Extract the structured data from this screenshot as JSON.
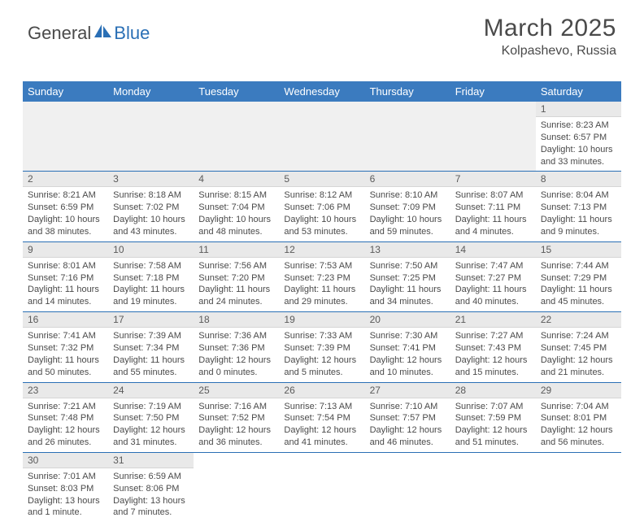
{
  "logo": {
    "part1": "General",
    "part2": "Blue"
  },
  "title": "March 2025",
  "location": "Kolpashevo, Russia",
  "colors": {
    "header_bg": "#3b7bbf",
    "header_text": "#ffffff",
    "accent_border": "#2a6fb5",
    "daynum_bg": "#e9e9e9",
    "empty_bg": "#f0f0f0",
    "text": "#4a4a4a"
  },
  "weekdays": [
    "Sunday",
    "Monday",
    "Tuesday",
    "Wednesday",
    "Thursday",
    "Friday",
    "Saturday"
  ],
  "first_weekday_index": 6,
  "days": [
    {
      "n": 1,
      "sunrise": "8:23 AM",
      "sunset": "6:57 PM",
      "daylight": "10 hours and 33 minutes."
    },
    {
      "n": 2,
      "sunrise": "8:21 AM",
      "sunset": "6:59 PM",
      "daylight": "10 hours and 38 minutes."
    },
    {
      "n": 3,
      "sunrise": "8:18 AM",
      "sunset": "7:02 PM",
      "daylight": "10 hours and 43 minutes."
    },
    {
      "n": 4,
      "sunrise": "8:15 AM",
      "sunset": "7:04 PM",
      "daylight": "10 hours and 48 minutes."
    },
    {
      "n": 5,
      "sunrise": "8:12 AM",
      "sunset": "7:06 PM",
      "daylight": "10 hours and 53 minutes."
    },
    {
      "n": 6,
      "sunrise": "8:10 AM",
      "sunset": "7:09 PM",
      "daylight": "10 hours and 59 minutes."
    },
    {
      "n": 7,
      "sunrise": "8:07 AM",
      "sunset": "7:11 PM",
      "daylight": "11 hours and 4 minutes."
    },
    {
      "n": 8,
      "sunrise": "8:04 AM",
      "sunset": "7:13 PM",
      "daylight": "11 hours and 9 minutes."
    },
    {
      "n": 9,
      "sunrise": "8:01 AM",
      "sunset": "7:16 PM",
      "daylight": "11 hours and 14 minutes."
    },
    {
      "n": 10,
      "sunrise": "7:58 AM",
      "sunset": "7:18 PM",
      "daylight": "11 hours and 19 minutes."
    },
    {
      "n": 11,
      "sunrise": "7:56 AM",
      "sunset": "7:20 PM",
      "daylight": "11 hours and 24 minutes."
    },
    {
      "n": 12,
      "sunrise": "7:53 AM",
      "sunset": "7:23 PM",
      "daylight": "11 hours and 29 minutes."
    },
    {
      "n": 13,
      "sunrise": "7:50 AM",
      "sunset": "7:25 PM",
      "daylight": "11 hours and 34 minutes."
    },
    {
      "n": 14,
      "sunrise": "7:47 AM",
      "sunset": "7:27 PM",
      "daylight": "11 hours and 40 minutes."
    },
    {
      "n": 15,
      "sunrise": "7:44 AM",
      "sunset": "7:29 PM",
      "daylight": "11 hours and 45 minutes."
    },
    {
      "n": 16,
      "sunrise": "7:41 AM",
      "sunset": "7:32 PM",
      "daylight": "11 hours and 50 minutes."
    },
    {
      "n": 17,
      "sunrise": "7:39 AM",
      "sunset": "7:34 PM",
      "daylight": "11 hours and 55 minutes."
    },
    {
      "n": 18,
      "sunrise": "7:36 AM",
      "sunset": "7:36 PM",
      "daylight": "12 hours and 0 minutes."
    },
    {
      "n": 19,
      "sunrise": "7:33 AM",
      "sunset": "7:39 PM",
      "daylight": "12 hours and 5 minutes."
    },
    {
      "n": 20,
      "sunrise": "7:30 AM",
      "sunset": "7:41 PM",
      "daylight": "12 hours and 10 minutes."
    },
    {
      "n": 21,
      "sunrise": "7:27 AM",
      "sunset": "7:43 PM",
      "daylight": "12 hours and 15 minutes."
    },
    {
      "n": 22,
      "sunrise": "7:24 AM",
      "sunset": "7:45 PM",
      "daylight": "12 hours and 21 minutes."
    },
    {
      "n": 23,
      "sunrise": "7:21 AM",
      "sunset": "7:48 PM",
      "daylight": "12 hours and 26 minutes."
    },
    {
      "n": 24,
      "sunrise": "7:19 AM",
      "sunset": "7:50 PM",
      "daylight": "12 hours and 31 minutes."
    },
    {
      "n": 25,
      "sunrise": "7:16 AM",
      "sunset": "7:52 PM",
      "daylight": "12 hours and 36 minutes."
    },
    {
      "n": 26,
      "sunrise": "7:13 AM",
      "sunset": "7:54 PM",
      "daylight": "12 hours and 41 minutes."
    },
    {
      "n": 27,
      "sunrise": "7:10 AM",
      "sunset": "7:57 PM",
      "daylight": "12 hours and 46 minutes."
    },
    {
      "n": 28,
      "sunrise": "7:07 AM",
      "sunset": "7:59 PM",
      "daylight": "12 hours and 51 minutes."
    },
    {
      "n": 29,
      "sunrise": "7:04 AM",
      "sunset": "8:01 PM",
      "daylight": "12 hours and 56 minutes."
    },
    {
      "n": 30,
      "sunrise": "7:01 AM",
      "sunset": "8:03 PM",
      "daylight": "13 hours and 1 minute."
    },
    {
      "n": 31,
      "sunrise": "6:59 AM",
      "sunset": "8:06 PM",
      "daylight": "13 hours and 7 minutes."
    }
  ],
  "labels": {
    "sunrise": "Sunrise:",
    "sunset": "Sunset:",
    "daylight": "Daylight:"
  }
}
